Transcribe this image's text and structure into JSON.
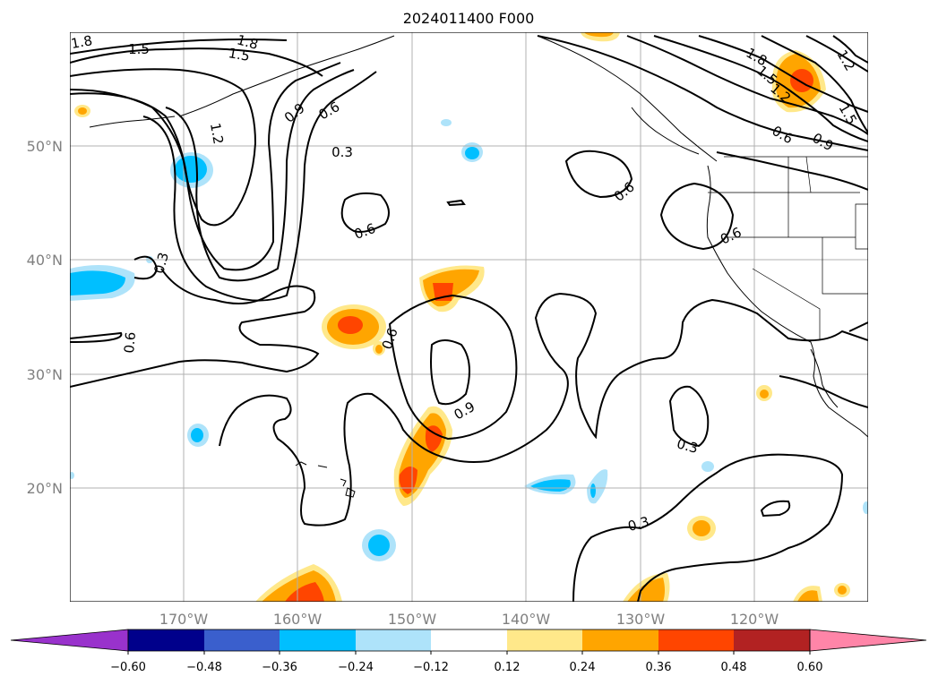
{
  "title": "2024011400 F000",
  "lat_labels": [
    "50°N",
    "40°N",
    "30°N",
    "20°N"
  ],
  "lon_labels": [
    "170°W",
    "160°W",
    "150°W",
    "140°W",
    "130°W",
    "120°W"
  ],
  "colorbar": {
    "ticks": [
      "−0.60",
      "−0.48",
      "−0.36",
      "−0.24",
      "−0.12",
      "0.12",
      "0.24",
      "0.36",
      "0.48",
      "0.60"
    ],
    "colors": [
      "#9932cc",
      "#00008b",
      "#3a5fcd",
      "#00bfff",
      "#aee3fa",
      "#ffffff",
      "#ffe88a",
      "#ffa500",
      "#ff4500",
      "#b22222",
      "#ff85a8"
    ]
  },
  "contour_labels": [
    "1.8",
    "1.5",
    "1.8",
    "1.5",
    "1.2",
    "0.9",
    "0.6",
    "0.3",
    "0.3",
    "0.6",
    "0.6",
    "0.6",
    "0.9",
    "0.6",
    "0.3",
    "0.3",
    "1.8",
    "1.5",
    "1.2",
    "1.5",
    "0.6",
    "0.9",
    "0.6",
    "1.2"
  ]
}
